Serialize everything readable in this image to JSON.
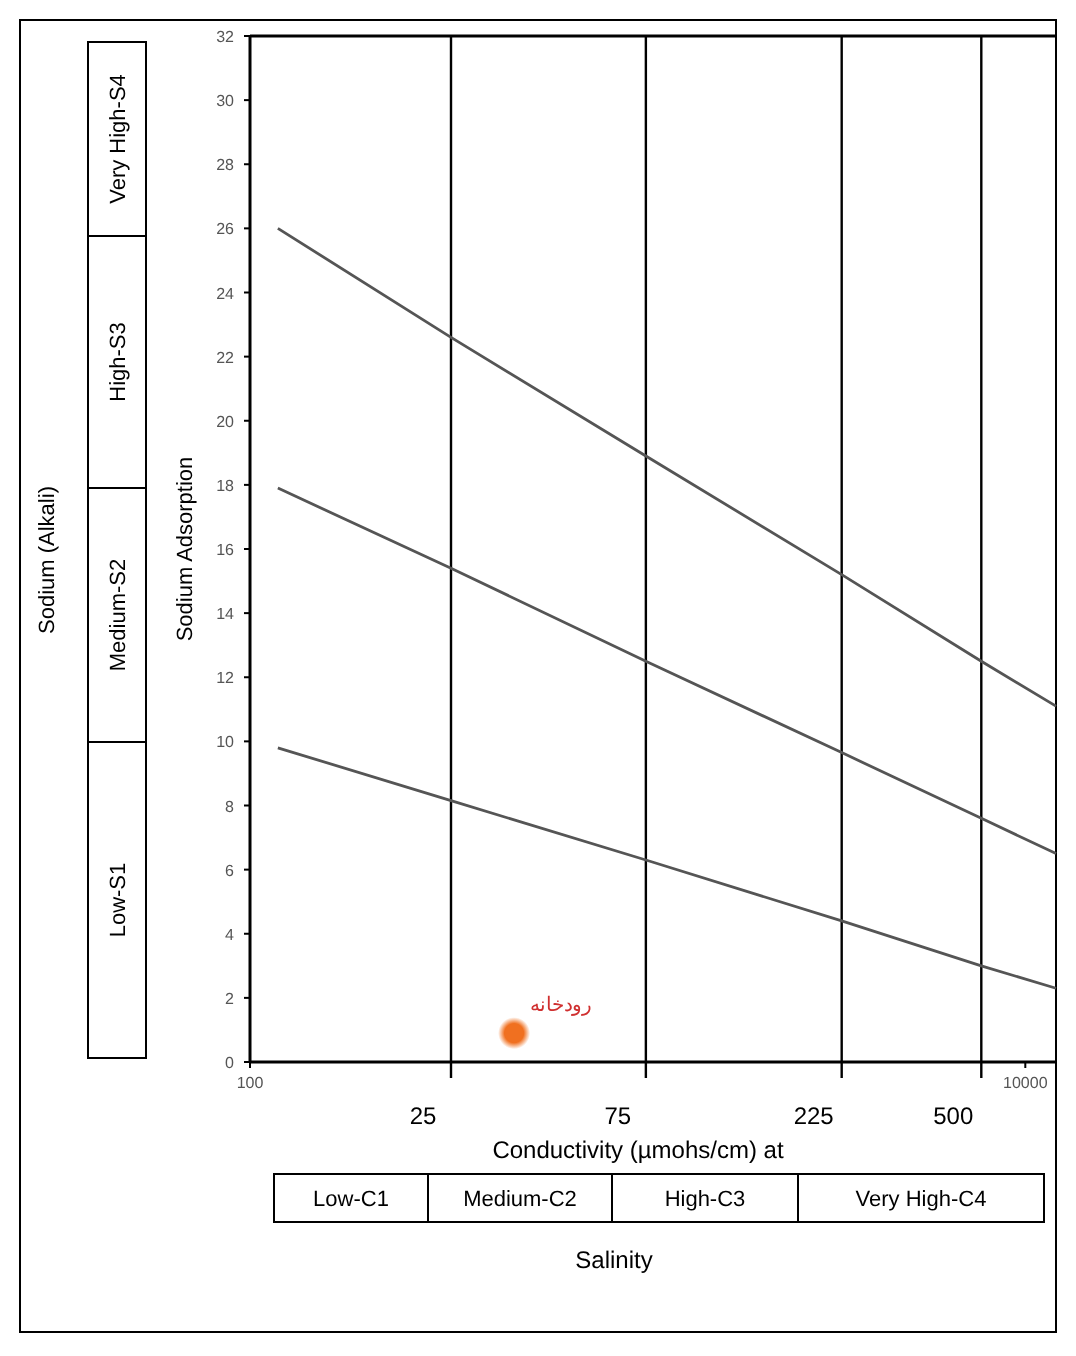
{
  "chart_data": {
    "type": "line",
    "xlabel": "Conductivity (µmohs/cm) at",
    "ylabel": "Sodium Adsorption",
    "annotations": [
      "Sodium (Alkali)",
      "Salinity",
      "25",
      "75",
      "225",
      "500",
      "Low-S1",
      "Medium-S2",
      "High-S3",
      "Very High-S4",
      "Low-C1",
      "Medium-C2",
      "High-C3",
      "Very High-C4"
    ],
    "log": "x",
    "xlim": [
      100,
      12000
    ],
    "xticks": [
      100,
      10000
    ],
    "ylim": [
      0,
      32
    ],
    "yticks": [
      0,
      2,
      4,
      6,
      8,
      10,
      12,
      14,
      16,
      18,
      20,
      22,
      24,
      26,
      28,
      30,
      32
    ],
    "grid": false,
    "legend": false,
    "ref_lines": [
      {
        "axis": "x",
        "value": 330,
        "color": "#000000"
      },
      {
        "axis": "x",
        "value": 1050,
        "color": "#000000"
      },
      {
        "axis": "x",
        "value": 3360,
        "color": "#000000"
      },
      {
        "axis": "x",
        "value": 7700,
        "color": "#000000"
      }
    ],
    "series": [
      {
        "color": "#555555",
        "x": [
          118,
          330,
          1050,
          3360,
          7700,
          12000
        ],
        "values": [
          26,
          22.6,
          18.9,
          15.2,
          12.5,
          11.1
        ]
      },
      {
        "color": "#555555",
        "x": [
          118,
          330,
          1050,
          3360,
          7700,
          12000
        ],
        "values": [
          17.9,
          15.4,
          12.5,
          9.65,
          7.6,
          6.5
        ]
      },
      {
        "color": "#555555",
        "x": [
          118,
          330,
          1050,
          3360,
          7700,
          12000
        ],
        "values": [
          9.8,
          8.15,
          6.3,
          4.4,
          3.0,
          2.3
        ]
      },
      {
        "type": "scatter",
        "name": "رودخانه",
        "color": "#f07020",
        "marker": "circle",
        "x": [
          480
        ],
        "values": [
          0.9
        ]
      }
    ]
  }
}
